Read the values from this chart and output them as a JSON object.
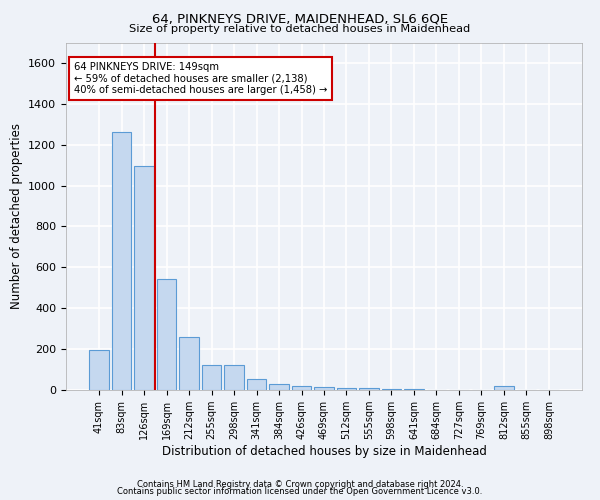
{
  "title1": "64, PINKNEYS DRIVE, MAIDENHEAD, SL6 6QE",
  "title2": "Size of property relative to detached houses in Maidenhead",
  "xlabel": "Distribution of detached houses by size in Maidenhead",
  "ylabel": "Number of detached properties",
  "categories": [
    "41sqm",
    "83sqm",
    "126sqm",
    "169sqm",
    "212sqm",
    "255sqm",
    "298sqm",
    "341sqm",
    "384sqm",
    "426sqm",
    "469sqm",
    "512sqm",
    "555sqm",
    "598sqm",
    "641sqm",
    "684sqm",
    "727sqm",
    "769sqm",
    "812sqm",
    "855sqm",
    "898sqm"
  ],
  "values": [
    195,
    1260,
    1095,
    545,
    260,
    120,
    120,
    55,
    30,
    20,
    15,
    10,
    10,
    5,
    5,
    0,
    0,
    0,
    20,
    0,
    0
  ],
  "bar_color": "#c5d8ef",
  "bar_edge_color": "#5b9bd5",
  "vline_x": 2.5,
  "vline_color": "#cc0000",
  "annotation_line1": "64 PINKNEYS DRIVE: 149sqm",
  "annotation_line2": "← 59% of detached houses are smaller (2,138)",
  "annotation_line3": "40% of semi-detached houses are larger (1,458) →",
  "annotation_box_color": "#ffffff",
  "annotation_box_edge": "#cc0000",
  "ylim": [
    0,
    1700
  ],
  "yticks": [
    0,
    200,
    400,
    600,
    800,
    1000,
    1200,
    1400,
    1600
  ],
  "footer1": "Contains HM Land Registry data © Crown copyright and database right 2024.",
  "footer2": "Contains public sector information licensed under the Open Government Licence v3.0.",
  "bg_color": "#eef2f8",
  "grid_color": "#ffffff"
}
